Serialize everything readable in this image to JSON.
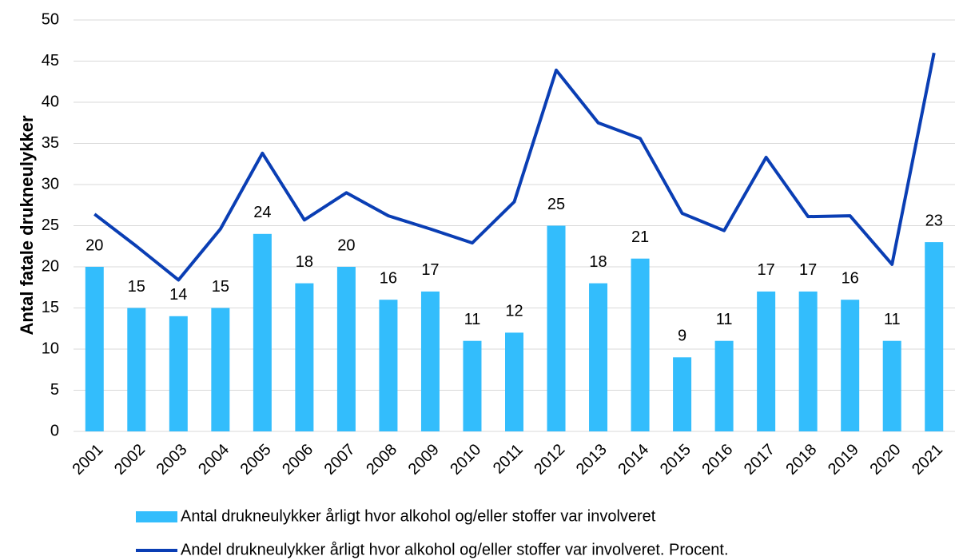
{
  "chart_data": {
    "type": "bar_line",
    "y_label": "Antal fatale drukneulykker",
    "categories": [
      "2001",
      "2002",
      "2003",
      "2004",
      "2005",
      "2006",
      "2007",
      "2008",
      "2009",
      "2010",
      "2011",
      "2012",
      "2013",
      "2014",
      "2015",
      "2016",
      "2017",
      "2018",
      "2019",
      "2020",
      "2021"
    ],
    "series": [
      {
        "name": "Antal drukneulykker årligt hvor alkohol og/eller stoffer var involveret",
        "type": "bar",
        "color": "#33bdfc",
        "values": [
          20,
          15,
          14,
          15,
          24,
          18,
          20,
          16,
          17,
          11,
          12,
          25,
          18,
          21,
          9,
          11,
          17,
          17,
          16,
          11,
          23
        ]
      },
      {
        "name": "Andel drukneulykker årligt hvor alkohol og/eller stoffer var involveret. Procent.",
        "type": "line",
        "color": "#0a3eb4",
        "values": [
          26.4,
          22.5,
          18.4,
          24.6,
          33.8,
          25.7,
          29.0,
          26.2,
          24.6,
          22.9,
          27.9,
          43.9,
          37.5,
          35.6,
          26.5,
          24.4,
          33.3,
          26.1,
          26.2,
          20.3,
          46.0
        ]
      }
    ],
    "ylim": [
      0,
      50
    ],
    "yticks": [
      0,
      5,
      10,
      15,
      20,
      25,
      30,
      35,
      40,
      45,
      50
    ],
    "grid": true
  }
}
